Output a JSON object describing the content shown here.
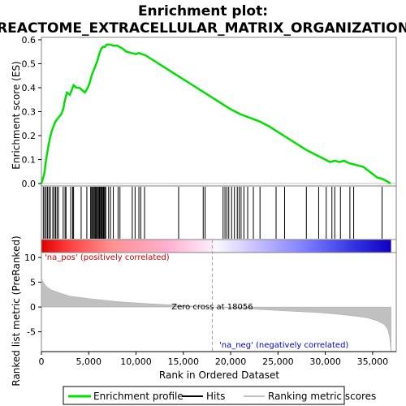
{
  "chart_data": {
    "type": "line",
    "title_line1": "Enrichment plot:",
    "title_line2": "REACTOME_EXTRACELLULAR_MATRIX_ORGANIZATION",
    "xlabel": "Rank in Ordered Dataset",
    "es_ylabel": "Enrichment score (ES)",
    "metric_ylabel": "Ranked list metric (PreRanked)",
    "xlim": [
      0,
      37500
    ],
    "x_ticks": [
      0,
      5000,
      10000,
      15000,
      20000,
      25000,
      30000,
      35000
    ],
    "x_tick_labels": [
      "0",
      "5,000",
      "10,000",
      "15,000",
      "20,000",
      "25,000",
      "30,000",
      "35,000"
    ],
    "es_ylim": [
      -0.01,
      0.61
    ],
    "es_ticks": [
      0.0,
      0.1,
      0.2,
      0.3,
      0.4,
      0.5,
      0.6
    ],
    "es_tick_labels": [
      "0.0",
      "0.1",
      "0.2",
      "0.3",
      "0.4",
      "0.5",
      "0.6"
    ],
    "metric_ylim": [
      -9,
      11
    ],
    "metric_ticks": [
      10,
      5,
      0,
      -5
    ],
    "metric_tick_labels": [
      "10",
      "5",
      "0",
      "-5"
    ],
    "zero_cross_rank": 18056,
    "zero_cross_label": "Zero cross at 18056",
    "pos_label": "'na_pos' (positively correlated)",
    "neg_label": "'na_neg' (negatively correlated)",
    "series": [
      {
        "name": "Enrichment profile",
        "color": "#00e000",
        "x": [
          0,
          300,
          500,
          700,
          900,
          1100,
          1300,
          1500,
          1700,
          1900,
          2100,
          2300,
          2500,
          2700,
          3000,
          3200,
          3400,
          3700,
          4000,
          4300,
          4600,
          4900,
          5100,
          5300,
          5500,
          5700,
          5900,
          6100,
          6300,
          6500,
          6700,
          6900,
          7100,
          7300,
          7600,
          8000,
          8500,
          9000,
          9500,
          10000,
          10300,
          10600,
          11000,
          12000,
          13000,
          14000,
          15000,
          16000,
          17000,
          18000,
          19000,
          20000,
          21000,
          22000,
          23000,
          24000,
          25000,
          26000,
          27000,
          28000,
          29000,
          30000,
          30500,
          31000,
          31500,
          32000,
          32500,
          33000,
          33500,
          34000,
          34500,
          35000,
          35500,
          36000,
          36500,
          36900
        ],
        "y": [
          0.0,
          0.04,
          0.1,
          0.15,
          0.19,
          0.22,
          0.24,
          0.26,
          0.27,
          0.28,
          0.29,
          0.31,
          0.35,
          0.38,
          0.37,
          0.39,
          0.41,
          0.4,
          0.4,
          0.39,
          0.38,
          0.4,
          0.42,
          0.45,
          0.47,
          0.49,
          0.51,
          0.54,
          0.56,
          0.57,
          0.57,
          0.58,
          0.58,
          0.58,
          0.575,
          0.575,
          0.565,
          0.55,
          0.545,
          0.54,
          0.545,
          0.54,
          0.535,
          0.51,
          0.485,
          0.46,
          0.435,
          0.41,
          0.385,
          0.36,
          0.335,
          0.31,
          0.29,
          0.275,
          0.26,
          0.24,
          0.215,
          0.19,
          0.165,
          0.14,
          0.12,
          0.1,
          0.09,
          0.095,
          0.09,
          0.095,
          0.085,
          0.08,
          0.075,
          0.07,
          0.055,
          0.04,
          0.025,
          0.02,
          0.01,
          0.0
        ]
      }
    ],
    "hits": [
      200,
      350,
      500,
      650,
      800,
      950,
      1200,
      1350,
      1500,
      1650,
      1800,
      2300,
      2500,
      2600,
      3100,
      3300,
      3400,
      4200,
      4800,
      5200,
      5300,
      5400,
      5500,
      5600,
      5700,
      5800,
      5900,
      6000,
      6100,
      6150,
      6200,
      6300,
      6400,
      6500,
      6550,
      6600,
      6700,
      6800,
      7100,
      7300,
      7600,
      8100,
      8300,
      9600,
      9900,
      10300,
      10500,
      10900,
      14500,
      17100,
      17300,
      19200,
      19400,
      19600,
      19800,
      20100,
      20400,
      20700,
      20900,
      21100,
      21400,
      21800,
      22400,
      23100,
      24800,
      25700,
      28000,
      29300,
      30100,
      30700,
      31000,
      31600,
      32600,
      33000,
      36000
    ],
    "metric": {
      "x": [
        0,
        200,
        500,
        1000,
        2000,
        3000,
        5000,
        8000,
        11000,
        14000,
        16000,
        18056,
        20000,
        23000,
        26000,
        29000,
        31000,
        33000,
        34500,
        35500,
        36200,
        36600,
        36800,
        36950
      ],
      "y": [
        6.0,
        5.0,
        4.2,
        3.5,
        2.8,
        2.2,
        1.7,
        1.1,
        0.7,
        0.4,
        0.2,
        0.0,
        -0.2,
        -0.5,
        -0.8,
        -1.1,
        -1.4,
        -1.8,
        -2.2,
        -2.8,
        -3.5,
        -4.5,
        -6.0,
        -9.0
      ]
    },
    "legend_items": [
      {
        "label": "Enrichment profile",
        "color": "#00e000"
      },
      {
        "label": "Hits",
        "color": "#000000"
      },
      {
        "label": "Ranking metric scores",
        "color": "#c0c0c0"
      }
    ]
  }
}
